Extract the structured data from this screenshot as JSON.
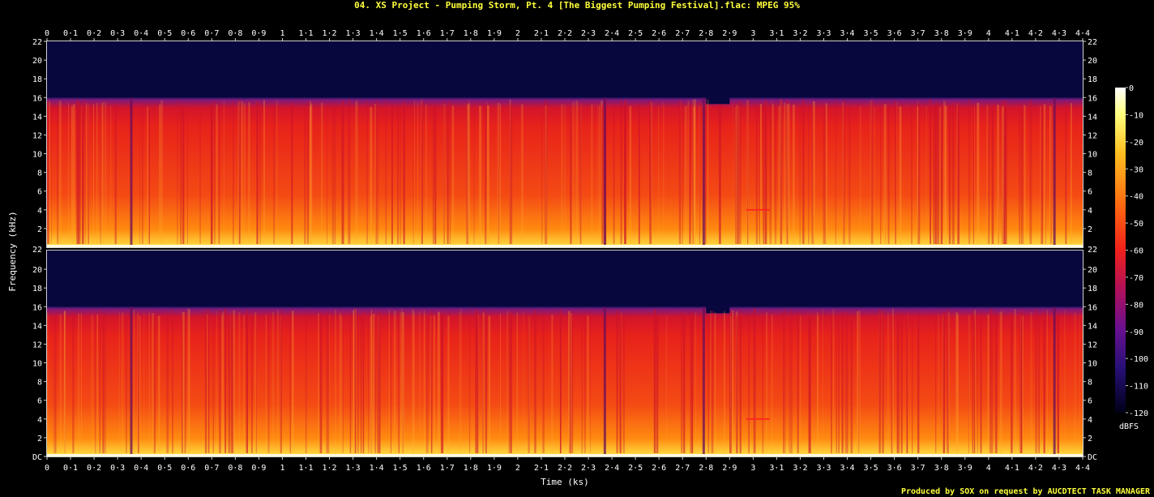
{
  "header": {
    "title": "04. XS Project - Pumping Storm, Pt. 4 [The Biggest Pumping Festival].flac: MPEG 95%",
    "credit": "Produced by SOX on request by AUCDTECT TASK MANAGER"
  },
  "colors": {
    "background": "#000000",
    "text": "#ffffff",
    "title": "#ffff3c",
    "frame": "#cfcfcf",
    "floor": "#07073d"
  },
  "chart_data": {
    "type": "heatmap",
    "title": "04. XS Project - Pumping Storm, Pt. 4 [The Biggest Pumping Festival].flac: MPEG 95%",
    "xlabel": "Time (ks)",
    "ylabel": "Frequency (kHz)",
    "xlim": [
      0,
      4.4
    ],
    "ylim": [
      0,
      22
    ],
    "x_ticks": [
      "0",
      "0·1",
      "0·2",
      "0·3",
      "0·4",
      "0·5",
      "0·6",
      "0·7",
      "0·8",
      "0·9",
      "1",
      "1·1",
      "1·2",
      "1·3",
      "1·4",
      "1·5",
      "1·6",
      "1·7",
      "1·8",
      "1·9",
      "2",
      "2·1",
      "2·2",
      "2·3",
      "2·4",
      "2·5",
      "2·6",
      "2·7",
      "2·8",
      "2·9",
      "3",
      "3·1",
      "3·2",
      "3·3",
      "3·4",
      "3·5",
      "3·6",
      "3·7",
      "3·8",
      "3·9",
      "4",
      "4·1",
      "4·2",
      "4·3",
      "4·4"
    ],
    "y_ticks_left": [
      "DC",
      "2",
      "4",
      "6",
      "8",
      "10",
      "12",
      "14",
      "16",
      "18",
      "20",
      "22"
    ],
    "y_ticks_right": [
      "DC",
      "2",
      "4",
      "6",
      "8",
      "10",
      "12",
      "14",
      "16",
      "18",
      "20",
      "22"
    ],
    "channels": 2,
    "lowpass_cutoff_khz": 16,
    "colorbar": {
      "label": "dBFS",
      "min": -120,
      "max": 0,
      "ticks": [
        "0",
        "-10",
        "-20",
        "-30",
        "-40",
        "-50",
        "-60",
        "-70",
        "-80",
        "-90",
        "-100",
        "-110",
        "-120"
      ]
    }
  }
}
